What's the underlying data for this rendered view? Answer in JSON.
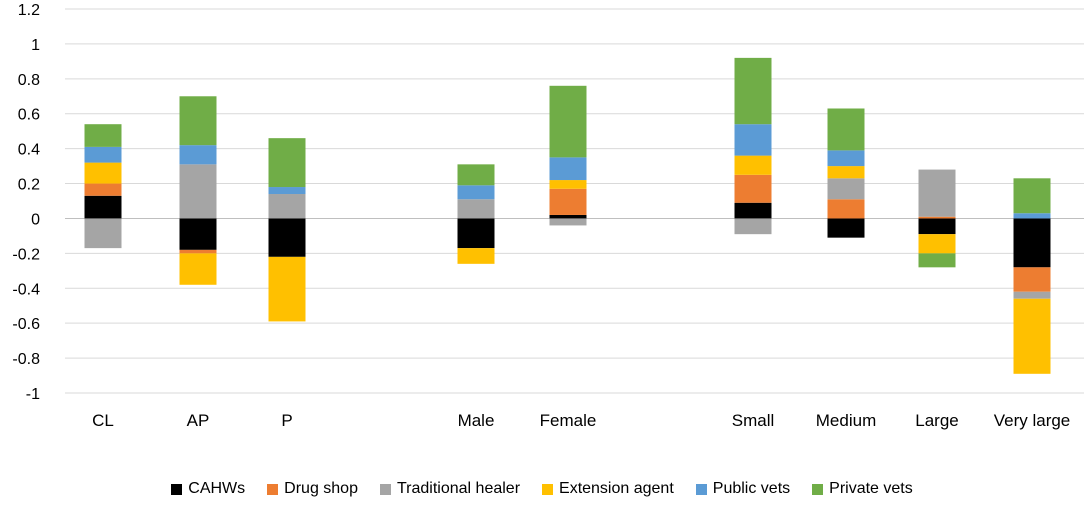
{
  "chart_data": {
    "type": "bar",
    "stacked": true,
    "categories": [
      "CL",
      "AP",
      "P",
      "",
      "Male",
      "Female",
      "",
      "Small",
      "Medium",
      "Large",
      "Very large"
    ],
    "ylim": [
      -1,
      1.2
    ],
    "yticks": [
      -1,
      -0.8,
      -0.6,
      -0.4,
      -0.2,
      0,
      0.2,
      0.4,
      0.6,
      0.8,
      1,
      1.2
    ],
    "ytick_labels": [
      "-1",
      "-0.8",
      "-0.6",
      "-0.4",
      "-0.2",
      "0",
      "0.2",
      "0.4",
      "0.6",
      "0.8",
      "1",
      "1.2"
    ],
    "grid": true,
    "legend_position": "bottom",
    "series": [
      {
        "name": "CAHWs",
        "color": "#000000",
        "values": [
          0.13,
          -0.18,
          -0.22,
          null,
          -0.17,
          0.02,
          null,
          0.09,
          -0.11,
          -0.09,
          -0.28
        ]
      },
      {
        "name": "Drug shop",
        "color": "#ED7D31",
        "values": [
          0.07,
          -0.02,
          0,
          null,
          0,
          0.15,
          null,
          0.16,
          0.11,
          0.01,
          -0.14
        ]
      },
      {
        "name": "Traditional healer",
        "color": "#A5A5A5",
        "values": [
          -0.17,
          0.31,
          0.14,
          null,
          0.11,
          -0.04,
          null,
          -0.09,
          0.12,
          0.27,
          -0.04
        ]
      },
      {
        "name": "Extension agent",
        "color": "#FFC000",
        "values": [
          0.12,
          -0.18,
          -0.37,
          null,
          -0.09,
          0.05,
          null,
          0.11,
          0.07,
          -0.11,
          -0.43
        ]
      },
      {
        "name": "Public vets",
        "color": "#5B9BD5",
        "values": [
          0.09,
          0.11,
          0.04,
          null,
          0.08,
          0.13,
          null,
          0.18,
          0.09,
          0,
          0.03
        ]
      },
      {
        "name": "Private vets",
        "color": "#70AD47",
        "values": [
          0.13,
          0.28,
          0.28,
          null,
          0.12,
          0.41,
          null,
          0.38,
          0.24,
          -0.08,
          0.2
        ]
      }
    ]
  }
}
